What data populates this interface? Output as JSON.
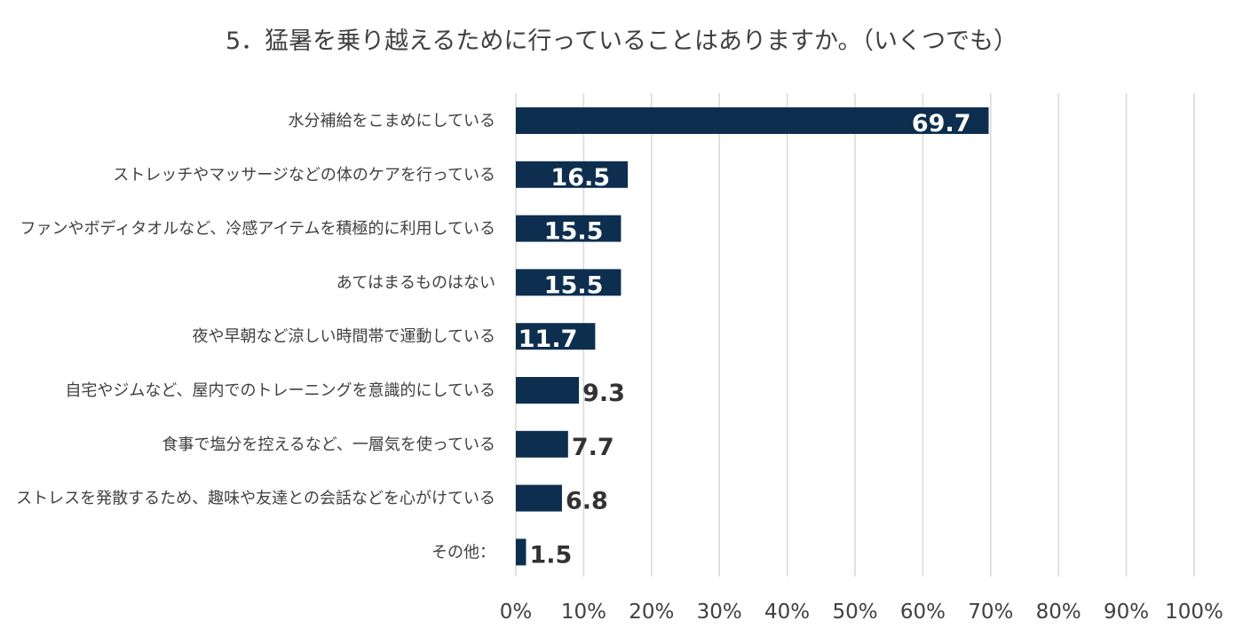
{
  "chart_data": {
    "type": "bar",
    "orientation": "horizontal",
    "title": "5．猛暑を乗り越えるために行っていることはありますか。（いくつでも）",
    "xlabel": "",
    "ylabel": "",
    "categories": [
      "水分補給をこまめにしている",
      "ストレッチやマッサージなどの体のケアを行っている",
      "ファンやボディタオルなど、冷感アイテムを積極的に利用している",
      "あてはまるものはない",
      "夜や早朝など涼しい時間帯で運動している",
      "自宅やジムなど、屋内でのトレーニングを意識的にしている",
      "食事で塩分を控えるなど、一層気を使っている",
      "ストレスを発散するため、趣味や友達との会話などを心がけている",
      "その他："
    ],
    "values": [
      69.7,
      16.5,
      15.5,
      15.5,
      11.7,
      9.3,
      7.7,
      6.8,
      1.5
    ],
    "value_labels": [
      "69.7",
      "16.5",
      "15.5",
      "15.5",
      "11.7",
      "9.3",
      "7.7",
      "6.8",
      "1.5"
    ],
    "xlim": [
      0,
      100
    ],
    "x_ticks": [
      "0%",
      "10%",
      "20%",
      "30%",
      "40%",
      "50%",
      "60%",
      "70%",
      "80%",
      "90%",
      "100%"
    ],
    "grid": true,
    "legend": "none",
    "colors": {
      "bar": "#0d2e4f",
      "label_inside": "#ffffff",
      "label_outside": "#333333",
      "grid": "#d9d9d9",
      "text": "#404040"
    }
  }
}
